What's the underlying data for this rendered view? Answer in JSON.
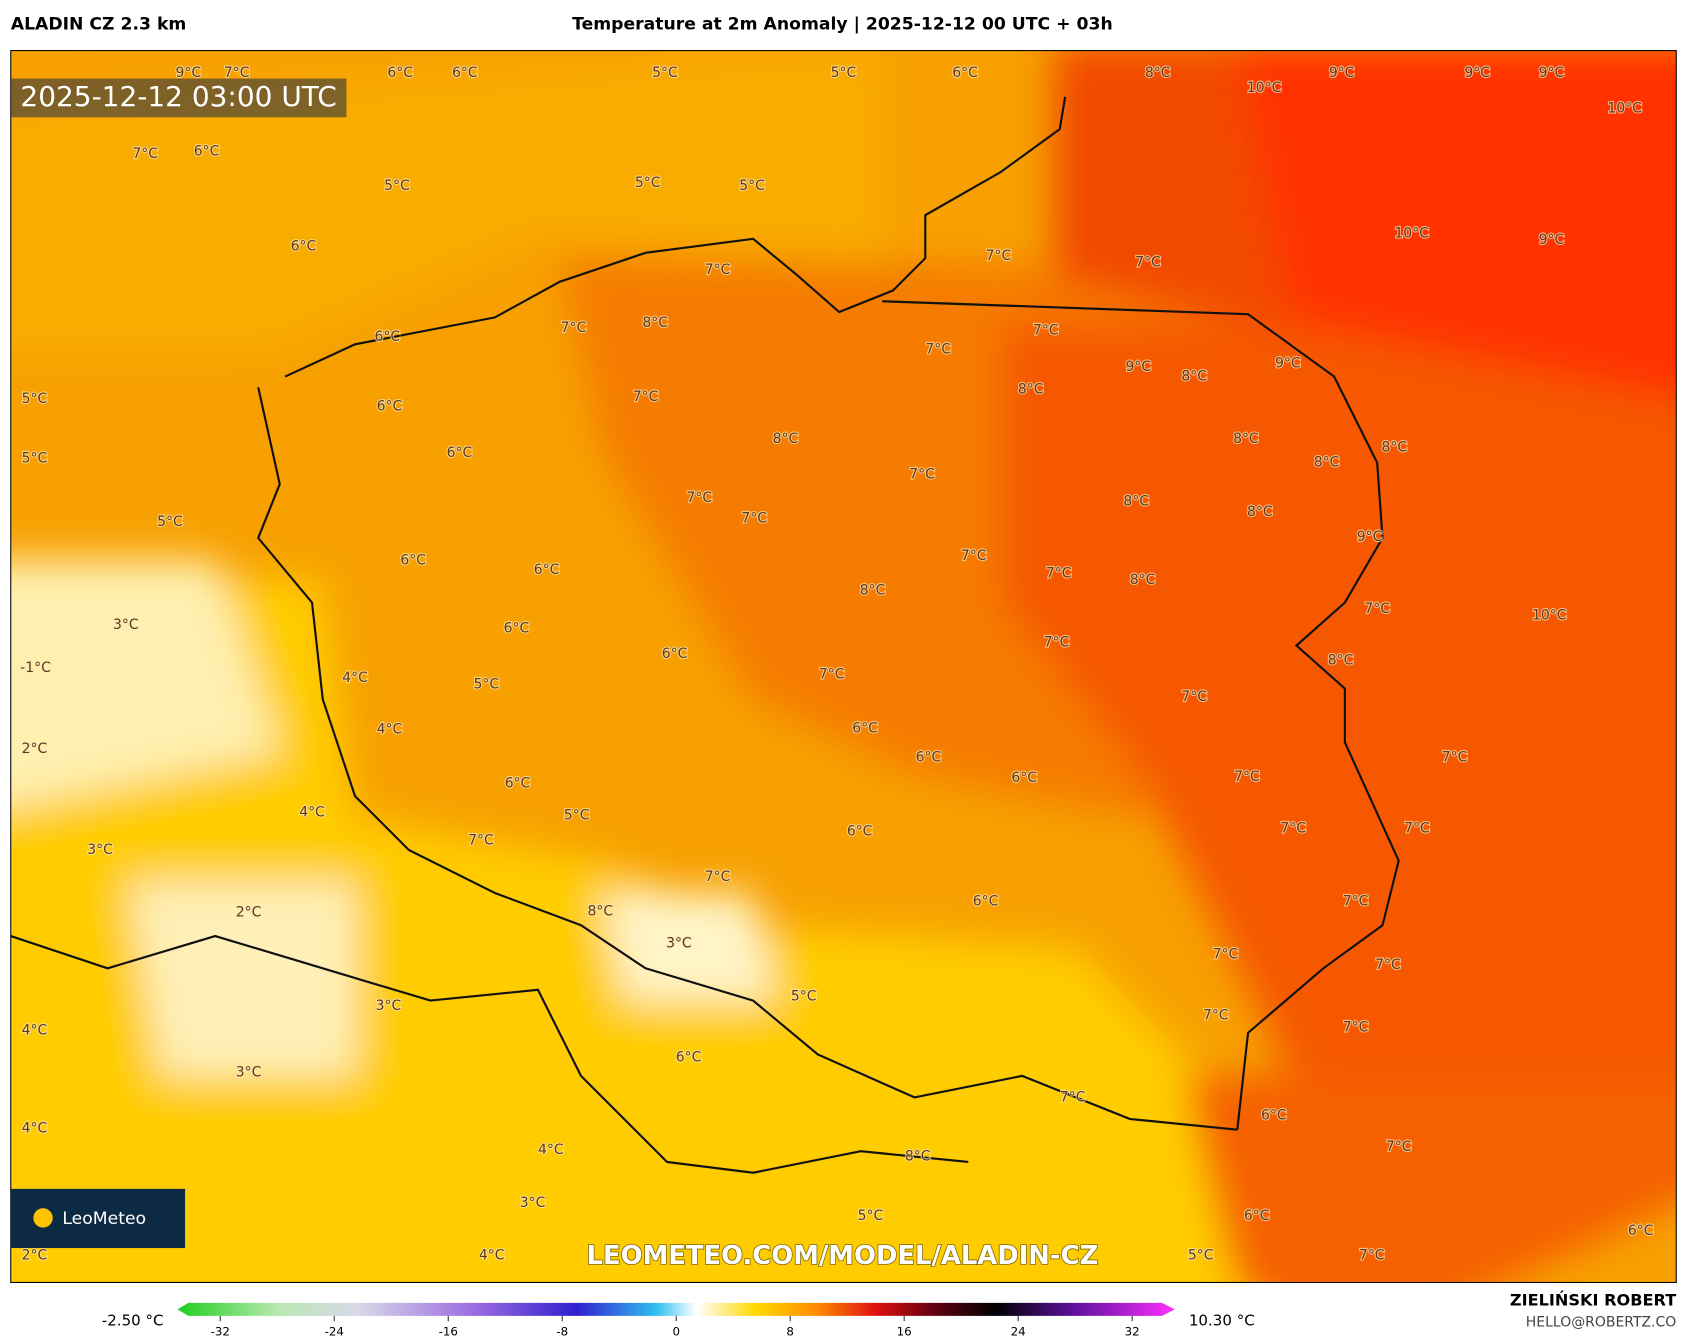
{
  "header": {
    "model": "ALADIN CZ 2.3 km",
    "title": "Temperature at 2m Anomaly | 2025-12-12 00 UTC + 03h",
    "timestamp": "2025-12-12 03:00 UTC"
  },
  "map": {
    "labels": [
      "9°C",
      "7°C",
      "6°C",
      "6°C",
      "5°C",
      "5°C",
      "6°C",
      "8°C",
      "10°C",
      "9°C",
      "9°C",
      "9°C",
      "10°C",
      "7°C",
      "6°C",
      "5°C",
      "5°C",
      "5°C",
      "6°C",
      "7°C",
      "7°C",
      "7°C",
      "10°C",
      "9°C",
      "6°C",
      "7°C",
      "8°C",
      "7°C",
      "7°C",
      "9°C",
      "8°C",
      "9°C",
      "5°C",
      "6°C",
      "7°C",
      "8°C",
      "8°C",
      "8°C",
      "5°C",
      "6°C",
      "8°C",
      "7°C",
      "8°C",
      "5°C",
      "7°C",
      "7°C",
      "8°C",
      "8°C",
      "9°C",
      "6°C",
      "6°C",
      "7°C",
      "7°C",
      "8°C",
      "3°C",
      "6°C",
      "8°C",
      "7°C",
      "10°C",
      "-1°C",
      "4°C",
      "5°C",
      "6°C",
      "7°C",
      "7°C",
      "8°C",
      "2°C",
      "4°C",
      "6°C",
      "7°C",
      "7°C",
      "6°C",
      "6°C",
      "6°C",
      "7°C",
      "4°C",
      "5°C",
      "6°C",
      "7°C",
      "7°C",
      "3°C",
      "7°C",
      "7°C",
      "6°C",
      "7°C",
      "2°C",
      "8°C",
      "3°C",
      "7°C",
      "7°C",
      "4°C",
      "3°C",
      "5°C",
      "7°C",
      "7°C",
      "3°C",
      "6°C",
      "7°C",
      "6°C",
      "4°C",
      "4°C",
      "8°C",
      "7°C",
      "3°C",
      "5°C",
      "6°C",
      "2°C",
      "4°C",
      "5°C",
      "7°C",
      "6°C"
    ],
    "watermark": "LEOMETEO.COM/MODEL/ALADIN-CZ",
    "logo": "LeoMeteo"
  },
  "colorbar": {
    "min_label": "-2.50 °C",
    "max_label": "10.30 °C",
    "lim": [
      -35,
      35
    ],
    "ticks": [
      -32,
      -24,
      -16,
      -8,
      0,
      8,
      16,
      24,
      32
    ]
  },
  "footer": {
    "author": "ZIELIŃSKI ROBERT",
    "email": "HELLO@ROBERTZ.CO"
  }
}
